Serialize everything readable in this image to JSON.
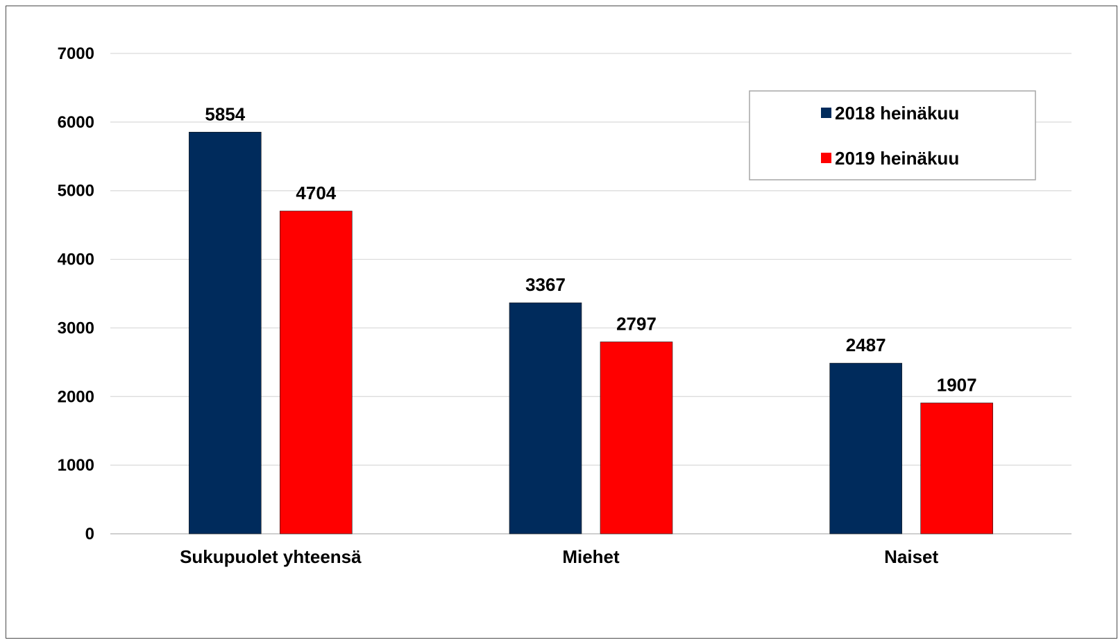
{
  "chart_data": {
    "type": "bar",
    "title": "",
    "xlabel": "",
    "ylabel": "",
    "categories": [
      "Sukupuolet yhteensä",
      "Miehet",
      "Naiset"
    ],
    "series": [
      {
        "name": "2018 heinäkuu",
        "color": "#002b5c",
        "values": [
          5854,
          3367,
          2487
        ]
      },
      {
        "name": "2019 heinäkuu",
        "color": "#ff0000",
        "values": [
          4704,
          2797,
          1907
        ]
      }
    ],
    "ylim": [
      0,
      7000
    ],
    "yticks": [
      0,
      1000,
      2000,
      3000,
      4000,
      5000,
      6000,
      7000
    ],
    "grid": true,
    "legend_position": "top-right",
    "data_labels": true
  }
}
